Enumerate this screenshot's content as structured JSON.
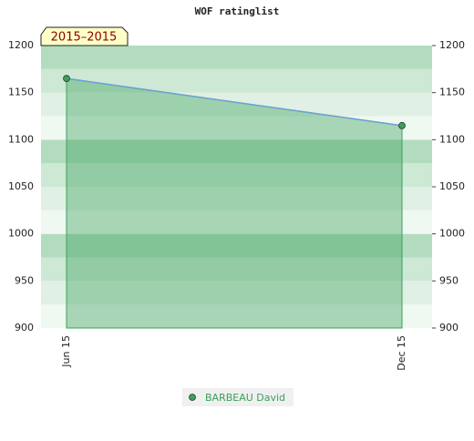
{
  "chart_data": {
    "type": "area",
    "title": "WOF ratinglist",
    "period_label": "2015–2015",
    "categories": [
      "Jun 15",
      "Dec 15"
    ],
    "series": [
      {
        "name": "BARBEAU David",
        "color": "#3aa05a",
        "line_color": "#6a9fd4",
        "values": [
          1165,
          1115
        ]
      }
    ],
    "ylim": [
      900,
      1200
    ],
    "yticks": [
      900,
      950,
      1000,
      1050,
      1100,
      1150,
      1200
    ],
    "grid": true
  }
}
